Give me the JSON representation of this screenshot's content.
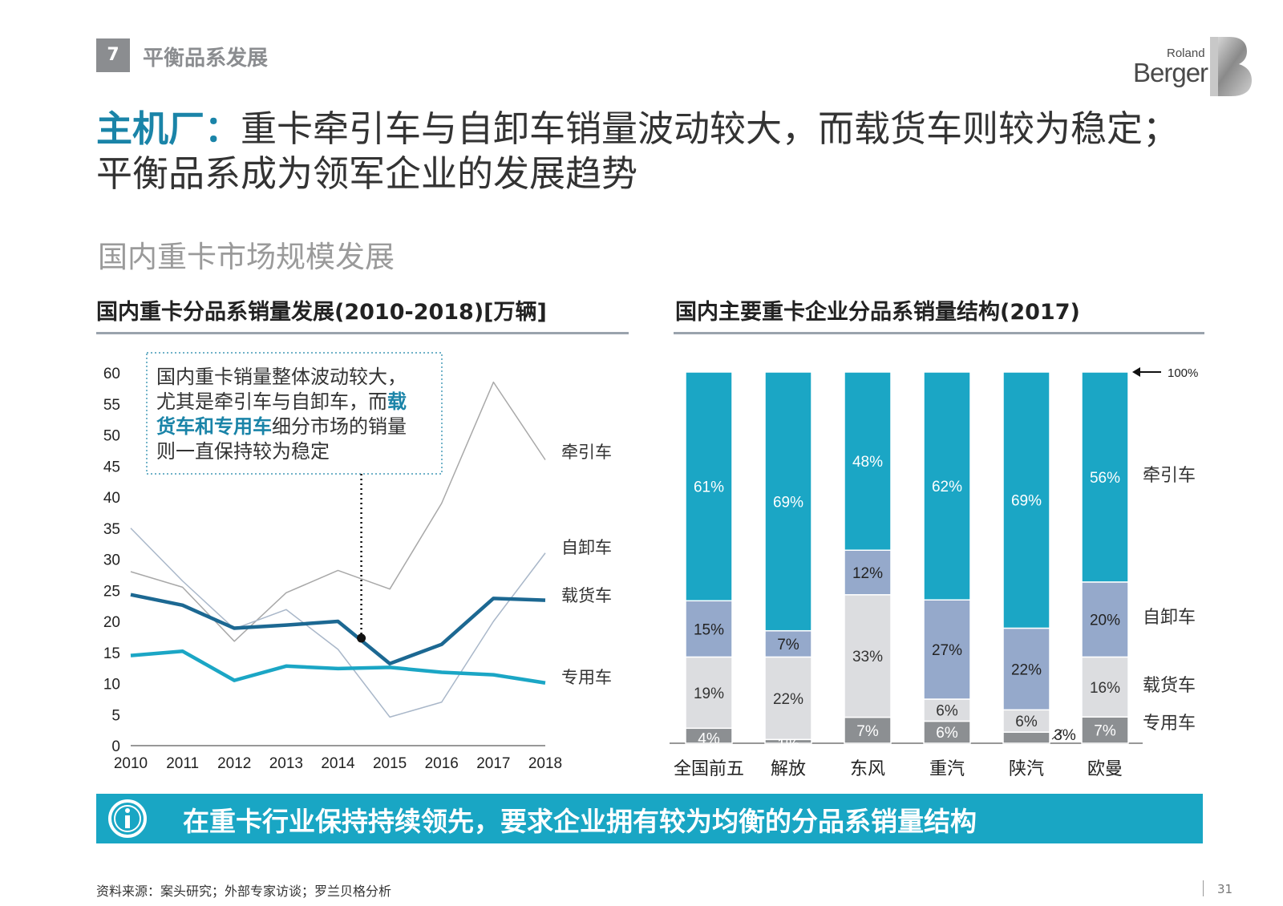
{
  "header": {
    "section_number": "7",
    "section_title": "平衡品系发展",
    "logo_line1": "Roland",
    "logo_line2": "Berger"
  },
  "title": {
    "accent": "主机厂：",
    "rest": "重卡牵引车与自卸车销量波动较大，而载货车则较为稳定；平衡品系成为领军企业的发展趋势"
  },
  "subtitle": "国内重卡市场规模发展",
  "colors": {
    "tractor": "#a8a8a8",
    "dump": "#a9b7c9",
    "cargo": "#1c6892",
    "special": "#1ba6c5",
    "bar_tractor": "#1ba6c5",
    "bar_dump": "#95a9cb",
    "bar_cargo": "#dcdde0",
    "bar_special": "#8c8f92"
  },
  "chart_data": [
    {
      "type": "line",
      "title": "国内重卡分品系销量发展(2010-2018)[万辆]",
      "x": [
        "2010",
        "2011",
        "2012",
        "2013",
        "2014",
        "2015",
        "2016",
        "2017",
        "2018"
      ],
      "ylim": [
        0,
        60
      ],
      "yticks": [
        0,
        5,
        10,
        15,
        20,
        25,
        30,
        35,
        40,
        45,
        50,
        55,
        60
      ],
      "series": [
        {
          "name": "牵引车",
          "values": [
            28.0,
            25.5,
            16.8,
            24.6,
            28.2,
            25.2,
            39.0,
            58.5,
            46.0
          ]
        },
        {
          "name": "自卸车",
          "values": [
            35.0,
            26.5,
            18.8,
            21.9,
            15.5,
            4.6,
            7.0,
            20.0,
            31.0
          ]
        },
        {
          "name": "载货车",
          "values": [
            24.3,
            22.6,
            18.9,
            19.4,
            20.0,
            13.2,
            16.3,
            23.7,
            23.4
          ]
        },
        {
          "name": "专用车",
          "values": [
            14.5,
            15.2,
            10.5,
            12.8,
            12.4,
            12.6,
            11.8,
            11.4,
            10.1
          ]
        }
      ],
      "annotation": {
        "lines": [
          [
            {
              "t": "国内重卡销量整体波动较大，",
              "b": false
            }
          ],
          [
            {
              "t": "尤其是牵引车与自卸车，而",
              "b": false
            },
            {
              "t": "载",
              "b": true
            }
          ],
          [
            {
              "t": "货车和专用车",
              "b": true
            },
            {
              "t": "细分市场的销量",
              "b": false
            }
          ],
          [
            {
              "t": "则一直保持较为稳定",
              "b": false
            }
          ]
        ],
        "x": 2014.45,
        "y": 17.3
      }
    },
    {
      "type": "bar",
      "stacked": true,
      "title": "国内主要重卡企业分品系销量结构(2017)",
      "categories": [
        "全国前五",
        "解放",
        "东风",
        "重汽",
        "陕汽",
        "欧曼"
      ],
      "series": [
        {
          "name": "专用车",
          "values": [
            4,
            1,
            7,
            6,
            3,
            7
          ]
        },
        {
          "name": "载货车",
          "values": [
            19,
            22,
            33,
            6,
            6,
            16
          ]
        },
        {
          "name": "自卸车",
          "values": [
            15,
            7,
            12,
            27,
            22,
            20
          ]
        },
        {
          "name": "牵引车",
          "values": [
            61,
            69,
            48,
            62,
            69,
            56
          ]
        }
      ],
      "value_labels": [
        [
          "4%",
          "1%",
          "7%",
          "6%",
          "3%",
          "7%"
        ],
        [
          "19%",
          "22%",
          "33%",
          "6%",
          "6%",
          "16%"
        ],
        [
          "15%",
          "7%",
          "12%",
          "27%",
          "22%",
          "20%"
        ],
        [
          "61%",
          "69%",
          "48%",
          "62%",
          "69%",
          "56%"
        ]
      ],
      "total_label": "100%",
      "legend_labels": [
        "牵引车",
        "自卸车",
        "载货车",
        "专用车"
      ]
    }
  ],
  "banner": {
    "icon": "info-icon",
    "text": "在重卡行业保持持续领先，要求企业拥有较为均衡的分品系销量结构"
  },
  "footer": {
    "source": "资料来源：案头研究；外部专家访谈；罗兰贝格分析",
    "page": "31"
  }
}
